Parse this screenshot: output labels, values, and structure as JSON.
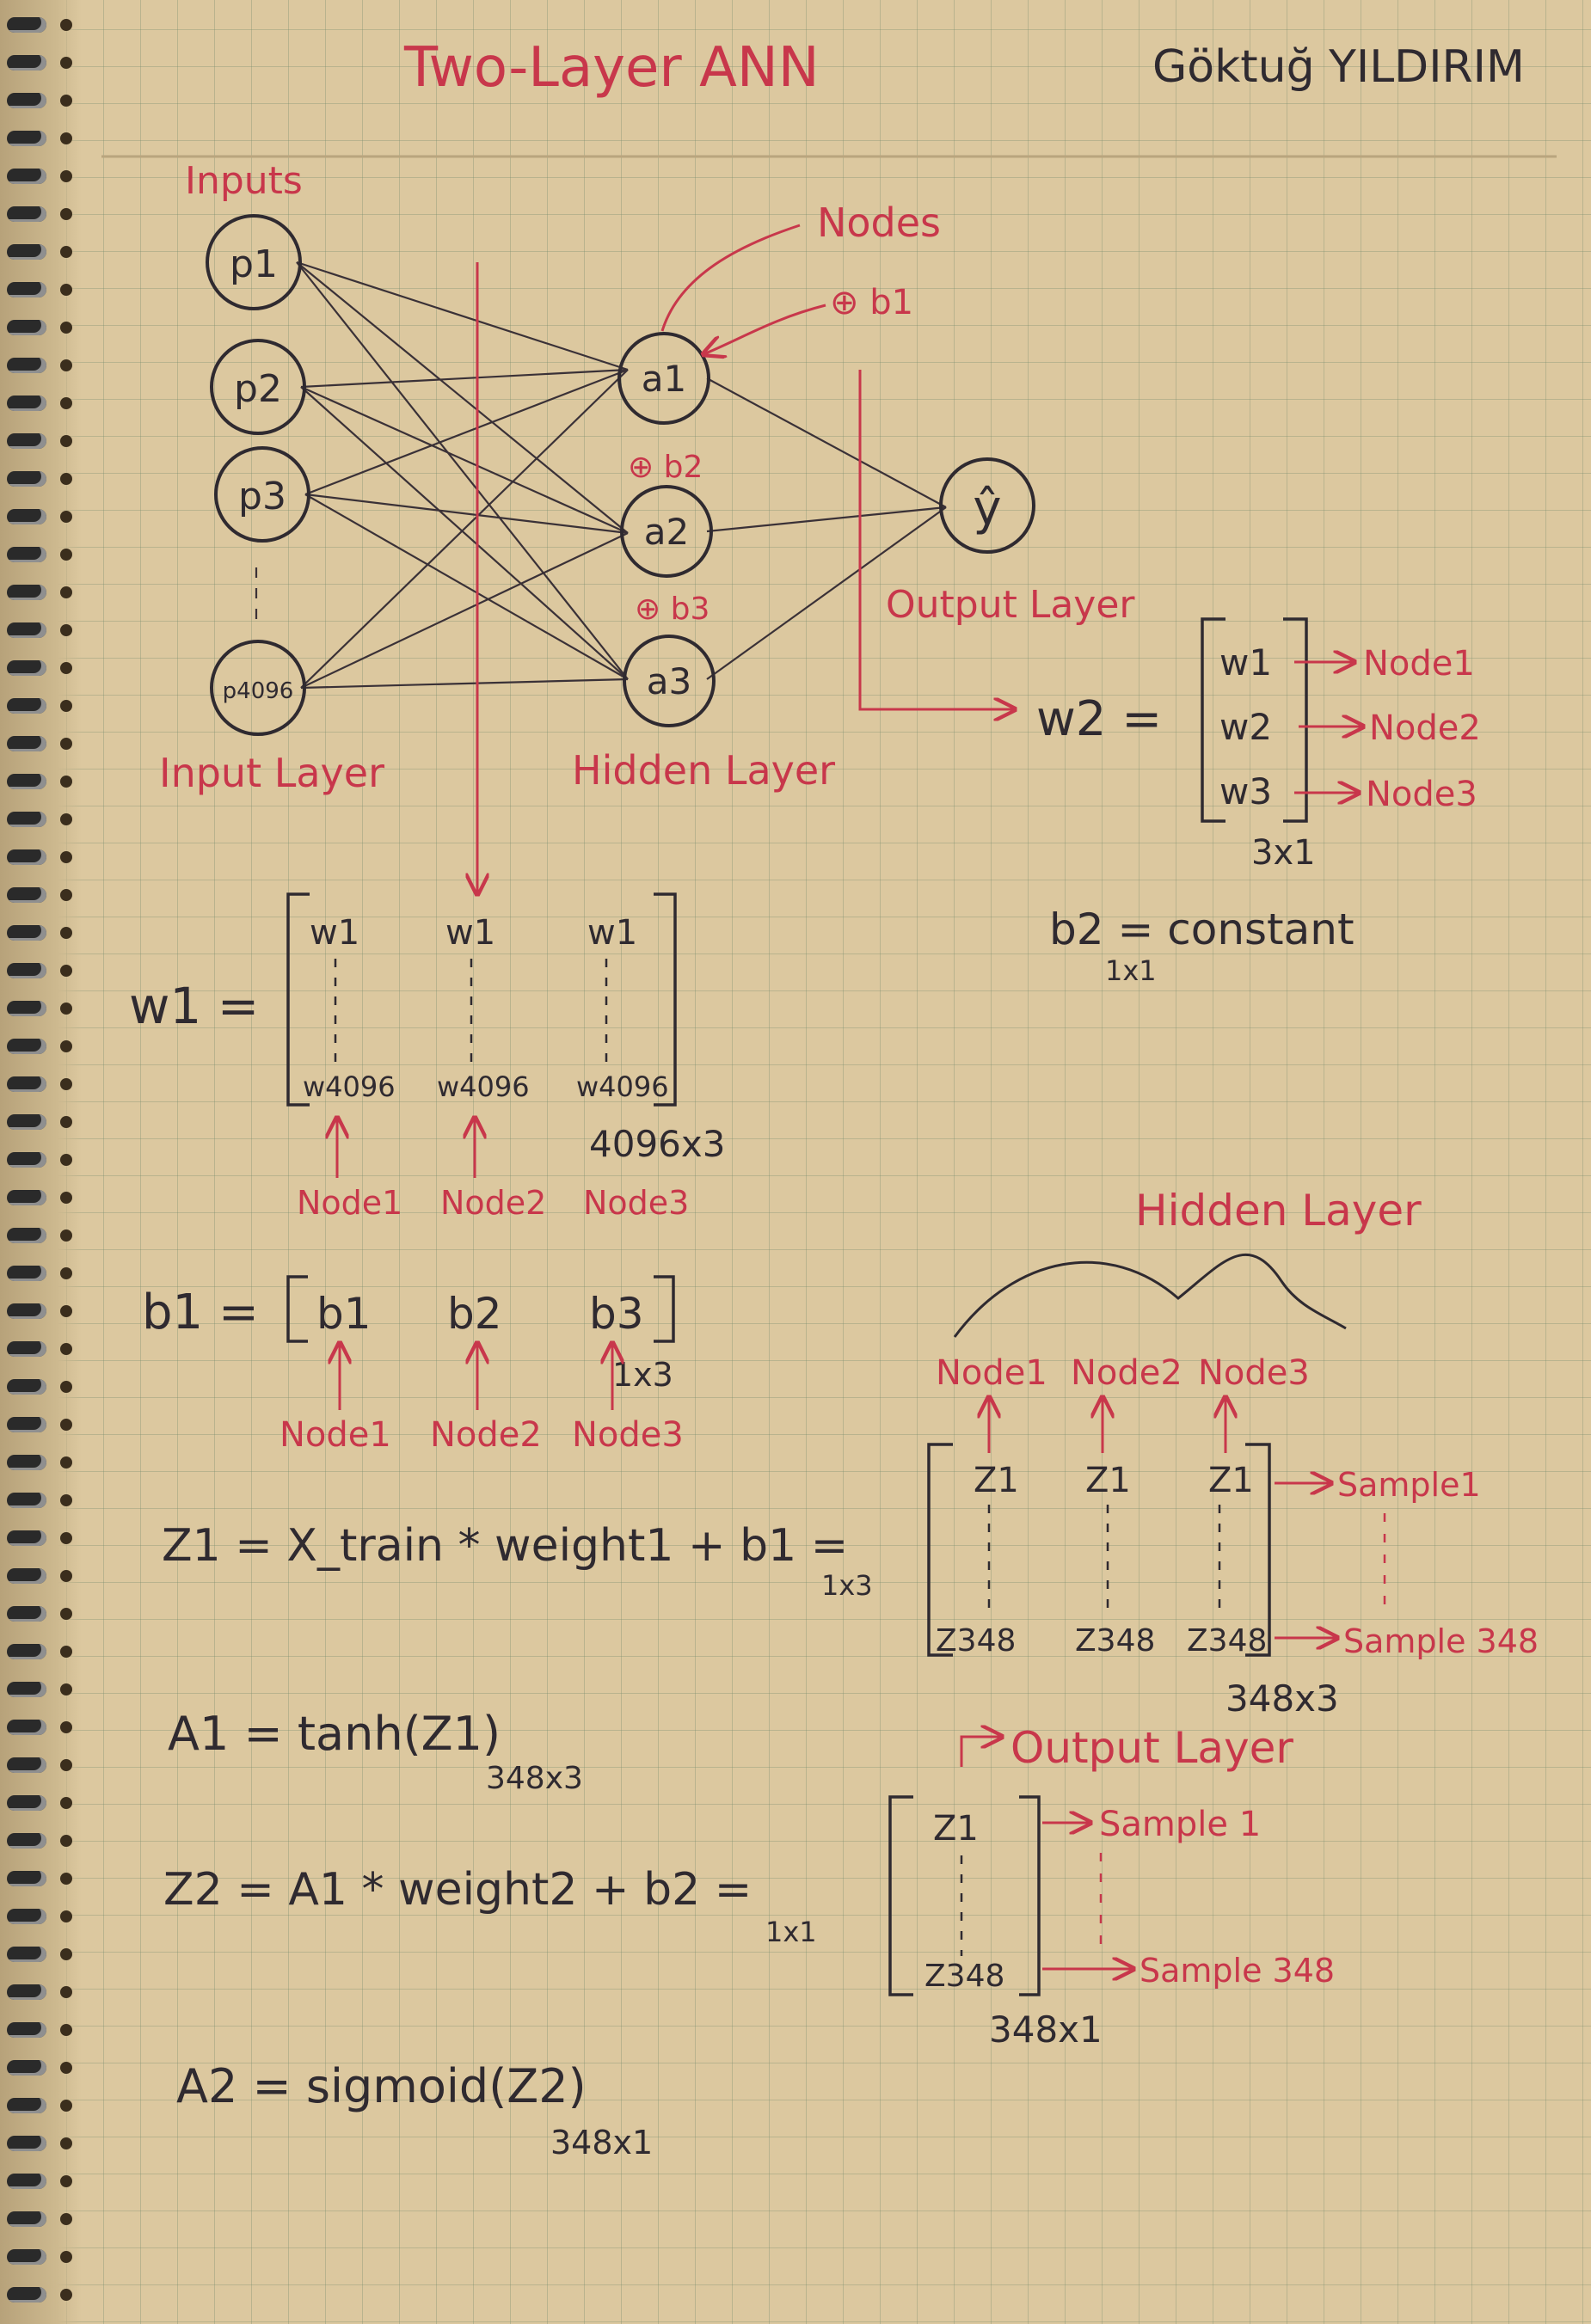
{
  "title": "Two-Layer ANN",
  "author": "Göktuğ YILDIRIM",
  "network": {
    "inputs_label": "Inputs",
    "input_nodes": [
      "p1",
      "p2",
      "p3",
      "p4096"
    ],
    "hidden_nodes": [
      "a1",
      "a2",
      "a3"
    ],
    "output_node": "ŷ",
    "nodes_label": "Nodes",
    "bias_labels": [
      "⊕ b1",
      "⊕ b2",
      "⊕ b3"
    ],
    "input_layer_label": "Input Layer",
    "hidden_layer_label": "Hidden Layer",
    "output_layer_label": "Output Layer"
  },
  "w2": {
    "lhs": "w2 =",
    "entries": [
      "w1",
      "w2",
      "w3"
    ],
    "targets": [
      "Node1",
      "Node2",
      "Node3"
    ],
    "shape": "3x1"
  },
  "b2": {
    "text": "b2 = constant",
    "shape": "1x1"
  },
  "w1": {
    "lhs": "w1 =",
    "top": [
      "w1",
      "w1",
      "w1"
    ],
    "bottom": [
      "w4096",
      "w4096",
      "w4096"
    ],
    "shape": "4096x3",
    "nodes": [
      "Node1",
      "Node2",
      "Node3"
    ]
  },
  "b1": {
    "lhs": "b1 =",
    "entries": [
      "b1",
      "b2",
      "b3"
    ],
    "shape": "1x3",
    "nodes": [
      "Node1",
      "Node2",
      "Node3"
    ]
  },
  "hidden_brace_label": "Hidden Layer",
  "z1": {
    "eq": "Z1 = X_train * weight1 + b1 =",
    "sub": "1x3",
    "cols": [
      "Node1",
      "Node2",
      "Node3"
    ],
    "top": [
      "Z1",
      "Z1",
      "Z1"
    ],
    "bottom": [
      "Z348",
      "Z348",
      "Z348"
    ],
    "rows": [
      "Sample1",
      "Sample 348"
    ],
    "shape": "348x3"
  },
  "a1": {
    "eq": "A1 = tanh(Z1)",
    "shape": "348x3"
  },
  "z2": {
    "output_label": "Output Layer",
    "eq": "Z2 = A1 * weight2 + b2 =",
    "sub": "1x1",
    "top": "Z1",
    "bottom": "Z348",
    "rows": [
      "Sample 1",
      "Sample 348"
    ],
    "shape": "348x1"
  },
  "a2": {
    "eq": "A2 = sigmoid(Z2)",
    "shape": "348x1"
  },
  "colors": {
    "ink": "#2f2a30",
    "red": "#c8374b",
    "paper": "#dcc89f"
  }
}
